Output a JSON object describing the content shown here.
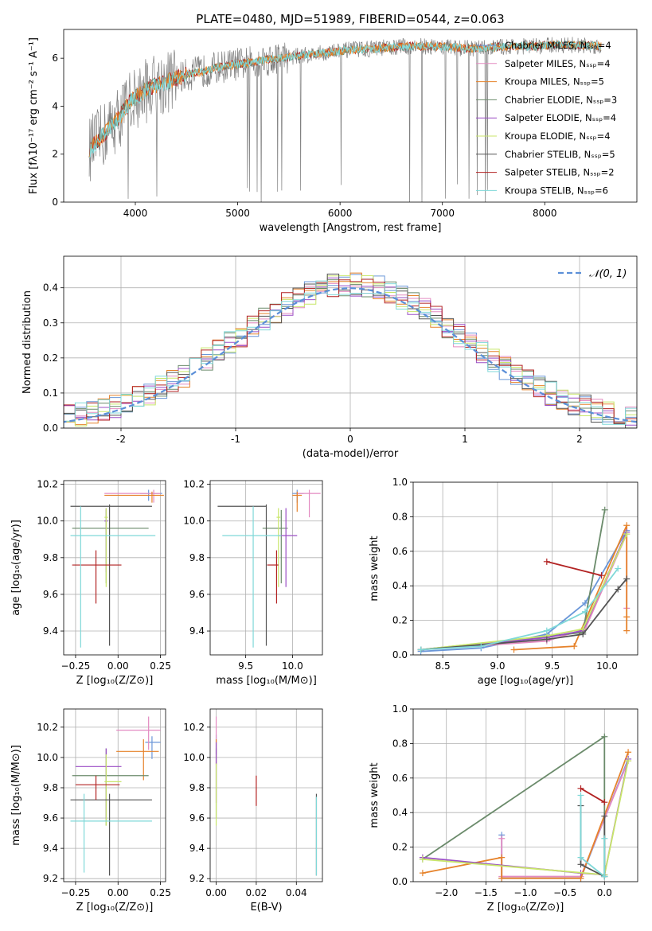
{
  "figure": {
    "title": "PLATE=0480, MJD=51989, FIBERID=0544, z=0.063"
  },
  "colors": {
    "data_gray": "#808080",
    "gaussian": "#5b8fd8",
    "grid": "#b0b0b0",
    "series": [
      "#6a96d8",
      "#e38ac1",
      "#e6822a",
      "#6b8b6b",
      "#9b4fc6",
      "#c8e66a",
      "#555555",
      "#b22222",
      "#7fd8d8"
    ]
  },
  "chart_data": [
    {
      "id": "spectrum",
      "type": "line",
      "xlabel": "wavelength [Angstrom, rest frame]",
      "ylabel": "Flux [fλ10⁻¹⁷ erg cm⁻² s⁻¹ A⁻¹]",
      "xlim": [
        3300,
        8900
      ],
      "ylim": [
        0,
        7.2
      ],
      "xticks": [
        4000,
        5000,
        6000,
        7000,
        8000
      ],
      "yticks": [
        0,
        2,
        4,
        6
      ],
      "grid": false,
      "legend_position": "right",
      "legend": [
        "Chabrier MILES, N$_{SSP}$=4",
        "Salpeter MILES, N$_{SSP}$=4",
        "Kroupa MILES, N$_{SSP}$=5",
        "Chabrier ELODIE, N$_{SSP}$=3",
        "Salpeter ELODIE, N$_{SSP}$=4",
        "Kroupa ELODIE, N$_{SSP}$=4",
        "Chabrier STELIB, N$_{SSP}$=5",
        "Salpeter STELIB, N$_{SSP}$=2",
        "Kroupa STELIB, N$_{SSP}$=6"
      ],
      "legend_display": [
        "Chabrier MILES, Nₛₛₚ=4",
        "Salpeter MILES, Nₛₛₚ=4",
        "Kroupa MILES, Nₛₛₚ=5",
        "Chabrier ELODIE, Nₛₛₚ=3",
        "Salpeter ELODIE, Nₛₛₚ=4",
        "Kroupa ELODIE, Nₛₛₚ=4",
        "Chabrier STELIB, Nₛₛₚ=5",
        "Salpeter STELIB, Nₛₛₚ=2",
        "Kroupa STELIB, Nₛₛₚ=6"
      ],
      "model_trend": {
        "x": [
          3550,
          3650,
          3750,
          3850,
          3950,
          4050,
          4150,
          4300,
          4500,
          4700,
          4900,
          5100,
          5300,
          5500,
          5700,
          5900,
          6100,
          6300,
          6500,
          6700,
          6900,
          7100,
          7300,
          7500,
          7700,
          7900,
          8100,
          8300,
          8500
        ],
        "y": [
          2.2,
          2.6,
          3.1,
          3.6,
          4.2,
          4.5,
          4.8,
          5.0,
          5.3,
          5.5,
          5.7,
          5.8,
          5.95,
          6.05,
          6.15,
          6.25,
          6.35,
          6.4,
          6.45,
          6.5,
          6.5,
          6.45,
          6.4,
          6.45,
          6.5,
          6.5,
          6.55,
          6.55,
          6.5
        ]
      }
    },
    {
      "id": "residuals",
      "type": "bar",
      "xlabel": "(data-model)/error",
      "ylabel": "Normed distribution",
      "xlim": [
        -2.5,
        2.5
      ],
      "ylim": [
        0,
        0.49
      ],
      "xticks": [
        -2,
        -1,
        0,
        1,
        2
      ],
      "yticks": [
        0.0,
        0.1,
        0.2,
        0.3,
        0.4
      ],
      "grid": true,
      "legend_position": "top-right",
      "legend": [
        "$\\mathcal{N}(0,1)$"
      ],
      "legend_display": [
        "𝒩(0, 1)"
      ],
      "bin_width": 0.1
    },
    {
      "id": "age_vs_Z",
      "type": "scatter",
      "xlabel": "Z [log₁₀(Z/Z⊙)]",
      "ylabel": "age  [log₁₀(age/yr)]",
      "xlim": [
        -0.32,
        0.28
      ],
      "ylim": [
        9.27,
        10.22
      ],
      "xticks": [
        -0.25,
        0.0,
        0.25
      ],
      "xtick_labels": [
        "−0.25",
        "0.00",
        "0.25"
      ],
      "yticks": [
        9.4,
        9.6,
        9.8,
        10.0,
        10.2
      ],
      "grid": true,
      "points": [
        {
          "c": 0,
          "x": 0.18,
          "y": 10.15,
          "xe": [
            0.13,
            0.26
          ],
          "ye": [
            10.11,
            10.17
          ]
        },
        {
          "c": 1,
          "x": 0.21,
          "y": 10.15,
          "xe": [
            -0.08,
            0.25
          ],
          "ye": [
            10.1,
            10.17
          ]
        },
        {
          "c": 2,
          "x": 0.2,
          "y": 10.14,
          "xe": [
            -0.08,
            0.27
          ],
          "ye": [
            10.1,
            10.16
          ]
        },
        {
          "c": 3,
          "x": -0.07,
          "y": 9.96,
          "xe": [
            -0.27,
            0.18
          ],
          "ye": [
            9.66,
            10.06
          ]
        },
        {
          "c": 4,
          "x": -0.07,
          "y": 10.0,
          "xe": [
            -0.08,
            -0.06
          ],
          "ye": [
            9.72,
            10.07
          ]
        },
        {
          "c": 5,
          "x": -0.07,
          "y": 10.02,
          "xe": [
            -0.08,
            -0.06
          ],
          "ye": [
            9.64,
            10.07
          ]
        },
        {
          "c": 6,
          "x": -0.05,
          "y": 10.08,
          "xe": [
            -0.28,
            0.2
          ],
          "ye": [
            9.32,
            10.09
          ]
        },
        {
          "c": 7,
          "x": -0.13,
          "y": 9.76,
          "xe": [
            -0.27,
            0.02
          ],
          "ye": [
            9.55,
            9.84
          ]
        },
        {
          "c": 8,
          "x": -0.22,
          "y": 9.92,
          "xe": [
            -0.28,
            0.22
          ],
          "ye": [
            9.31,
            10.08
          ]
        }
      ]
    },
    {
      "id": "age_vs_mass",
      "type": "scatter",
      "xlabel": "mass [log₁₀(M/M⊙)]",
      "ylabel": "",
      "xlim": [
        9.12,
        10.32
      ],
      "ylim": [
        9.27,
        10.22
      ],
      "xticks": [
        9.5,
        10.0
      ],
      "xtick_labels": [
        "9.5",
        "10.0"
      ],
      "yticks": [
        9.4,
        9.6,
        9.8,
        10.0,
        10.2
      ],
      "grid": true,
      "points": [
        {
          "c": 0,
          "x": 10.05,
          "y": 10.15,
          "xe": [
            10.0,
            10.12
          ],
          "ye": [
            10.1,
            10.17
          ]
        },
        {
          "c": 1,
          "x": 10.18,
          "y": 10.15,
          "xe": [
            10.05,
            10.3
          ],
          "ye": [
            10.02,
            10.17
          ]
        },
        {
          "c": 2,
          "x": 10.05,
          "y": 10.14,
          "xe": [
            10.0,
            10.1
          ],
          "ye": [
            10.05,
            10.16
          ]
        },
        {
          "c": 3,
          "x": 9.88,
          "y": 9.96,
          "xe": [
            9.68,
            9.95
          ],
          "ye": [
            9.66,
            10.06
          ]
        },
        {
          "c": 4,
          "x": 9.93,
          "y": 9.92,
          "xe": [
            9.85,
            10.05
          ],
          "ye": [
            9.64,
            10.07
          ]
        },
        {
          "c": 5,
          "x": 9.85,
          "y": 10.02,
          "xe": [
            9.83,
            9.87
          ],
          "ye": [
            9.64,
            10.07
          ]
        },
        {
          "c": 6,
          "x": 9.72,
          "y": 10.08,
          "xe": [
            9.2,
            9.72
          ],
          "ye": [
            9.32,
            10.09
          ]
        },
        {
          "c": 7,
          "x": 9.83,
          "y": 9.76,
          "xe": [
            9.73,
            9.85
          ],
          "ye": [
            9.55,
            9.84
          ]
        },
        {
          "c": 8,
          "x": 9.58,
          "y": 9.92,
          "xe": [
            9.25,
            9.88
          ],
          "ye": [
            9.31,
            10.08
          ]
        }
      ]
    },
    {
      "id": "mass_vs_Z",
      "type": "scatter",
      "xlabel": "Z [log₁₀(Z/Z⊙)]",
      "ylabel": "mass [log₁₀(M/M⊙)]",
      "xlim": [
        -0.32,
        0.28
      ],
      "ylim": [
        9.18,
        10.32
      ],
      "xticks": [
        -0.25,
        0.0,
        0.25
      ],
      "xtick_labels": [
        "−0.25",
        "0.00",
        "0.25"
      ],
      "yticks": [
        9.2,
        9.4,
        9.6,
        9.8,
        10.0,
        10.2
      ],
      "grid": true,
      "points": [
        {
          "c": 0,
          "x": 0.2,
          "y": 10.1,
          "xe": [
            0.16,
            0.25
          ],
          "ye": [
            9.99,
            10.14
          ]
        },
        {
          "c": 1,
          "x": 0.18,
          "y": 10.18,
          "xe": [
            -0.01,
            0.25
          ],
          "ye": [
            10.05,
            10.27
          ]
        },
        {
          "c": 2,
          "x": 0.15,
          "y": 10.04,
          "xe": [
            -0.01,
            0.24
          ],
          "ye": [
            9.85,
            10.12
          ]
        },
        {
          "c": 3,
          "x": -0.07,
          "y": 9.88,
          "xe": [
            -0.27,
            0.18
          ],
          "ye": [
            9.55,
            10.06
          ]
        },
        {
          "c": 4,
          "x": -0.07,
          "y": 9.94,
          "xe": [
            -0.25,
            0.02
          ],
          "ye": [
            9.6,
            10.06
          ]
        },
        {
          "c": 5,
          "x": -0.07,
          "y": 9.84,
          "xe": [
            -0.08,
            0.02
          ],
          "ye": [
            9.55,
            10.02
          ]
        },
        {
          "c": 6,
          "x": -0.05,
          "y": 9.72,
          "xe": [
            -0.28,
            0.2
          ],
          "ye": [
            9.22,
            9.76
          ]
        },
        {
          "c": 7,
          "x": -0.13,
          "y": 9.82,
          "xe": [
            -0.25,
            0.01
          ],
          "ye": [
            9.72,
            9.88
          ]
        },
        {
          "c": 8,
          "x": -0.2,
          "y": 9.58,
          "xe": [
            -0.28,
            0.2
          ],
          "ye": [
            9.24,
            9.76
          ]
        }
      ]
    },
    {
      "id": "mass_vs_EBV",
      "type": "scatter",
      "xlabel": "E(B-V)",
      "ylabel": "",
      "xlim": [
        -0.003,
        0.053
      ],
      "ylim": [
        9.18,
        10.32
      ],
      "xticks": [
        0.0,
        0.02,
        0.04
      ],
      "xtick_labels": [
        "0.00",
        "0.02",
        "0.04"
      ],
      "yticks": [
        9.2,
        9.4,
        9.6,
        9.8,
        10.0,
        10.2
      ],
      "grid": true,
      "points": [
        {
          "c": 0,
          "x": 0.0,
          "y": 10.1,
          "xe": [
            0.0,
            0.0
          ],
          "ye": [
            10.02,
            10.15
          ]
        },
        {
          "c": 1,
          "x": 0.0,
          "y": 10.18,
          "xe": [
            0.0,
            0.0
          ],
          "ye": [
            10.1,
            10.27
          ]
        },
        {
          "c": 2,
          "x": 0.0,
          "y": 10.04,
          "xe": [
            0.0,
            0.0
          ],
          "ye": [
            9.95,
            10.12
          ]
        },
        {
          "c": 3,
          "x": 0.0,
          "y": 9.88,
          "xe": [
            0.0,
            0.0
          ],
          "ye": [
            9.6,
            10.06
          ]
        },
        {
          "c": 4,
          "x": 0.0,
          "y": 9.94,
          "xe": [
            0.0,
            0.0
          ],
          "ye": [
            9.7,
            10.1
          ]
        },
        {
          "c": 5,
          "x": 0.0,
          "y": 9.84,
          "xe": [
            0.0,
            0.0
          ],
          "ye": [
            9.55,
            9.96
          ]
        },
        {
          "c": 6,
          "x": 0.05,
          "y": 9.5,
          "xe": [
            0.05,
            0.05
          ],
          "ye": [
            9.22,
            9.76
          ]
        },
        {
          "c": 7,
          "x": 0.02,
          "y": 9.78,
          "xe": [
            0.02,
            0.02
          ],
          "ye": [
            9.68,
            9.88
          ]
        },
        {
          "c": 8,
          "x": 0.05,
          "y": 9.5,
          "xe": [
            0.05,
            0.05
          ],
          "ye": [
            9.22,
            9.74
          ]
        }
      ]
    },
    {
      "id": "weight_vs_age",
      "type": "line",
      "xlabel": "age  [log₁₀(age/yr)]",
      "ylabel": "mass weight",
      "xlim": [
        8.23,
        10.28
      ],
      "ylim": [
        0,
        1.0
      ],
      "xticks": [
        8.5,
        9.0,
        9.5,
        10.0
      ],
      "xtick_labels": [
        "8.5",
        "9.0",
        "9.5",
        "10.0"
      ],
      "yticks": [
        0.0,
        0.2,
        0.4,
        0.6,
        0.8,
        1.0
      ],
      "grid": true,
      "series": [
        {
          "c": 0,
          "x": [
            8.3,
            8.85,
            9.45,
            9.8,
            10.18
          ],
          "y": [
            0.02,
            0.04,
            0.12,
            0.3,
            0.72
          ]
        },
        {
          "c": 1,
          "x": [
            8.3,
            9.45,
            9.8,
            10.18,
            10.18
          ],
          "y": [
            0.03,
            0.08,
            0.15,
            0.7,
            0.27
          ]
        },
        {
          "c": 2,
          "x": [
            9.15,
            9.7,
            10.18,
            10.18,
            10.18
          ],
          "y": [
            0.03,
            0.05,
            0.75,
            0.14,
            0.22
          ]
        },
        {
          "c": 3,
          "x": [
            8.3,
            9.78,
            9.98
          ],
          "y": [
            0.03,
            0.13,
            0.84
          ]
        },
        {
          "c": 4,
          "x": [
            8.3,
            9.45,
            9.78,
            10.18
          ],
          "y": [
            0.03,
            0.1,
            0.14,
            0.71
          ]
        },
        {
          "c": 5,
          "x": [
            8.3,
            9.45,
            9.78,
            10.18
          ],
          "y": [
            0.03,
            0.11,
            0.15,
            0.7
          ]
        },
        {
          "c": 6,
          "x": [
            8.3,
            9.45,
            9.78,
            10.1,
            10.18
          ],
          "y": [
            0.03,
            0.09,
            0.12,
            0.38,
            0.44
          ]
        },
        {
          "c": 7,
          "x": [
            9.45,
            9.95
          ],
          "y": [
            0.54,
            0.46
          ]
        },
        {
          "c": 8,
          "x": [
            8.3,
            8.85,
            9.45,
            9.8,
            10.1
          ],
          "y": [
            0.03,
            0.05,
            0.14,
            0.25,
            0.5
          ]
        }
      ]
    },
    {
      "id": "weight_vs_Z",
      "type": "line",
      "xlabel": "Z [log₁₀(Z/Z⊙)]",
      "ylabel": "mass weight",
      "xlim": [
        -2.42,
        0.42
      ],
      "ylim": [
        0,
        1.0
      ],
      "xticks": [
        -2.0,
        -1.5,
        -1.0,
        -0.5,
        0.0
      ],
      "xtick_labels": [
        "−2.0",
        "−1.5",
        "−1.0",
        "−0.5",
        "0.0"
      ],
      "yticks": [
        0.0,
        0.2,
        0.4,
        0.6,
        0.8,
        1.0
      ],
      "grid": true,
      "series": [
        {
          "c": 0,
          "x": [
            -1.3,
            -1.3,
            -0.3,
            0.3
          ],
          "y": [
            0.27,
            0.02,
            0.02,
            0.71
          ]
        },
        {
          "c": 1,
          "x": [
            -1.3,
            -1.3,
            -0.3,
            0.3
          ],
          "y": [
            0.25,
            0.03,
            0.03,
            0.7
          ]
        },
        {
          "c": 2,
          "x": [
            -2.3,
            -1.3,
            -1.3,
            -0.3,
            0.3
          ],
          "y": [
            0.05,
            0.14,
            0.02,
            0.02,
            0.75
          ]
        },
        {
          "c": 3,
          "x": [
            -2.3,
            0.0,
            0.0
          ],
          "y": [
            0.13,
            0.84,
            0.03
          ]
        },
        {
          "c": 4,
          "x": [
            -2.3,
            -0.3,
            0.0,
            0.3
          ],
          "y": [
            0.14,
            0.05,
            0.04,
            0.71
          ]
        },
        {
          "c": 5,
          "x": [
            -2.3,
            0.0,
            0.3
          ],
          "y": [
            0.13,
            0.04,
            0.7
          ]
        },
        {
          "c": 6,
          "x": [
            -0.3,
            -0.3,
            0.0,
            0.0
          ],
          "y": [
            0.44,
            0.1,
            0.03,
            0.38
          ]
        },
        {
          "c": 7,
          "x": [
            -0.3,
            0.0
          ],
          "y": [
            0.54,
            0.46
          ]
        },
        {
          "c": 8,
          "x": [
            -0.3,
            -0.3,
            0.0,
            0.0
          ],
          "y": [
            0.5,
            0.14,
            0.03,
            0.25
          ]
        }
      ]
    }
  ]
}
